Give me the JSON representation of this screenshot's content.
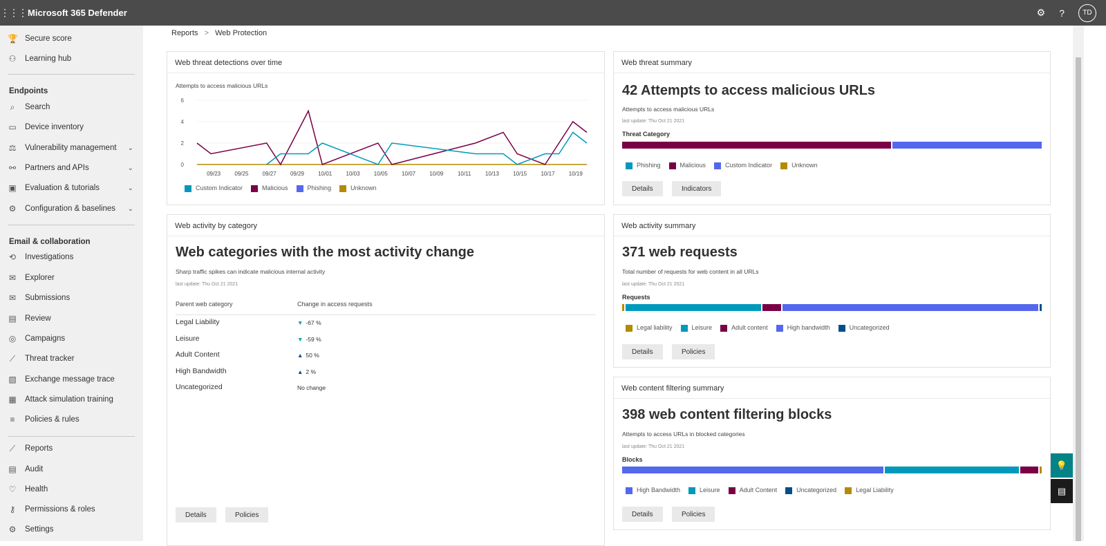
{
  "app": {
    "title": "Microsoft 365 Defender",
    "initials": "TD"
  },
  "sidebar": {
    "items": [
      {
        "label": "Secure score",
        "icon": "trophy-icon",
        "glyph": "🏆"
      },
      {
        "label": "Learning hub",
        "icon": "learning-icon",
        "glyph": "⚇"
      },
      {
        "header": "Endpoints"
      },
      {
        "label": "Search",
        "icon": "search-icon",
        "glyph": "⌕"
      },
      {
        "label": "Device inventory",
        "icon": "device-icon",
        "glyph": "▭"
      },
      {
        "label": "Vulnerability management",
        "icon": "vulnerability-icon",
        "glyph": "⚖",
        "chevron": true
      },
      {
        "label": "Partners and APIs",
        "icon": "partners-icon",
        "glyph": "⚯",
        "chevron": true
      },
      {
        "label": "Evaluation & tutorials",
        "icon": "evaluation-icon",
        "glyph": "▣",
        "chevron": true
      },
      {
        "label": "Configuration & baselines",
        "icon": "configuration-icon",
        "glyph": "⚙",
        "chevron": true
      },
      {
        "header": "Email & collaboration"
      },
      {
        "label": "Investigations",
        "icon": "investigations-icon",
        "glyph": "⟲"
      },
      {
        "label": "Explorer",
        "icon": "explorer-icon",
        "glyph": "✉"
      },
      {
        "label": "Submissions",
        "icon": "submissions-icon",
        "glyph": "✉"
      },
      {
        "label": "Review",
        "icon": "review-icon",
        "glyph": "▤"
      },
      {
        "label": "Campaigns",
        "icon": "campaigns-icon",
        "glyph": "◎"
      },
      {
        "label": "Threat tracker",
        "icon": "threat-tracker-icon",
        "glyph": "⟋"
      },
      {
        "label": "Exchange message trace",
        "icon": "exchange-icon",
        "glyph": "▧"
      },
      {
        "label": "Attack simulation training",
        "icon": "attack-simulation-icon",
        "glyph": "▦"
      },
      {
        "label": "Policies & rules",
        "icon": "policies-icon",
        "glyph": "≡"
      },
      {
        "label": "Reports",
        "icon": "reports-icon",
        "glyph": "⟋"
      },
      {
        "label": "Audit",
        "icon": "audit-icon",
        "glyph": "▤"
      },
      {
        "label": "Health",
        "icon": "health-icon",
        "glyph": "♡"
      },
      {
        "label": "Permissions & roles",
        "icon": "key-icon",
        "glyph": "⚷"
      },
      {
        "label": "Settings",
        "icon": "settings-icon",
        "glyph": "⚙"
      }
    ]
  },
  "breadcrumb": {
    "parent": "Reports",
    "sep": ">",
    "current": "Web Protection"
  },
  "colors": {
    "custom_indicator": "#0099bc",
    "malicious": "#7a0046",
    "phishing": "#5468ee",
    "unknown": "#b38b00",
    "uncategorized": "#004e8c",
    "leisure": "#0099bc",
    "legal": "#b38b00"
  },
  "detections": {
    "title": "Web threat detections over time",
    "chart_data": {
      "type": "line",
      "title": "Attempts to access malicious URLs",
      "ylim": [
        0,
        6
      ],
      "yticks": [
        0,
        2,
        4,
        6
      ],
      "x": [
        "09/22",
        "09/23",
        "09/24",
        "09/25",
        "09/26",
        "09/27",
        "09/28",
        "09/29",
        "09/30",
        "10/01",
        "10/02",
        "10/03",
        "10/04",
        "10/05",
        "10/06",
        "10/07",
        "10/08",
        "10/09",
        "10/10",
        "10/11",
        "10/12",
        "10/13",
        "10/14",
        "10/15",
        "10/16",
        "10/17",
        "10/18",
        "10/19",
        "10/20"
      ],
      "xticks": [
        "09/23",
        "09/25",
        "09/27",
        "09/29",
        "10/01",
        "10/03",
        "10/05",
        "10/07",
        "10/09",
        "10/11",
        "10/13",
        "10/15",
        "10/17",
        "10/19"
      ],
      "series": [
        {
          "name": "Custom Indicator",
          "color": "#0099bc",
          "points": [
            [
              "09/27",
              0
            ],
            [
              "09/28",
              1
            ],
            [
              "09/30",
              1
            ],
            [
              "10/01",
              2
            ],
            [
              "10/05",
              0
            ],
            [
              "10/06",
              2
            ],
            [
              "10/12",
              1
            ],
            [
              "10/14",
              1
            ],
            [
              "10/15",
              0
            ],
            [
              "10/17",
              1
            ],
            [
              "10/18",
              1
            ],
            [
              "10/19",
              3
            ],
            [
              "10/20",
              2
            ]
          ]
        },
        {
          "name": "Malicious",
          "color": "#7a0046",
          "points": [
            [
              "09/22",
              2
            ],
            [
              "09/23",
              1
            ],
            [
              "09/27",
              2
            ],
            [
              "09/28",
              0
            ],
            [
              "09/30",
              5
            ],
            [
              "10/01",
              0
            ],
            [
              "10/05",
              2
            ],
            [
              "10/06",
              0
            ],
            [
              "10/12",
              2
            ],
            [
              "10/14",
              3
            ],
            [
              "10/15",
              1
            ],
            [
              "10/17",
              0
            ],
            [
              "10/19",
              4
            ],
            [
              "10/20",
              3
            ]
          ]
        },
        {
          "name": "Phishing",
          "color": "#5468ee",
          "points": []
        },
        {
          "name": "Unknown",
          "color": "#b38b00",
          "points": [
            [
              "09/22",
              0
            ],
            [
              "10/20",
              0
            ]
          ]
        }
      ]
    }
  },
  "threat_summary": {
    "title": "Web threat summary",
    "headline": "42 Attempts to access malicious URLs",
    "sub": "Attempts to access malicious URLs",
    "updated": "last update: Thu Oct 21 2021",
    "bar_label": "Threat Category",
    "segments": [
      {
        "name": "Malicious",
        "value": 27,
        "color": "#7a0046"
      },
      {
        "name": "Custom Indicator",
        "value": 15,
        "color": "#5468ee"
      }
    ],
    "legend": [
      {
        "name": "Phishing",
        "color": "#0099bc"
      },
      {
        "name": "Malicious",
        "color": "#7a0046"
      },
      {
        "name": "Custom Indicator",
        "color": "#5468ee"
      },
      {
        "name": "Unknown",
        "color": "#b38b00"
      }
    ],
    "buttons": [
      "Details",
      "Indicators"
    ]
  },
  "activity_category": {
    "title": "Web activity by category",
    "headline": "Web categories with the most activity change",
    "sub": "Sharp traffic spikes can indicate malicious internal activity",
    "updated": "last update: Thu Oct 21 2021",
    "col1": "Parent web category",
    "col2": "Change in access requests",
    "rows": [
      {
        "name": "Legal Liability",
        "change": "-67 %",
        "dir": "down"
      },
      {
        "name": "Leisure",
        "change": "-59 %",
        "dir": "down"
      },
      {
        "name": "Adult Content",
        "change": "50 %",
        "dir": "up"
      },
      {
        "name": "High Bandwidth",
        "change": "2 %",
        "dir": "up"
      },
      {
        "name": "Uncategorized",
        "change": "No change",
        "dir": "none"
      }
    ],
    "buttons": [
      "Details",
      "Policies"
    ]
  },
  "activity_summary": {
    "title": "Web activity summary",
    "headline": "371 web requests",
    "sub": "Total number of requests for web content in all URLs",
    "updated": "last update: Thu Oct 21 2021",
    "bar_label": "Requests",
    "segments": [
      {
        "name": "Legal liability",
        "value": 2,
        "color": "#b38b00"
      },
      {
        "name": "Leisure",
        "value": 121,
        "color": "#0099bc"
      },
      {
        "name": "Adult content",
        "value": 17,
        "color": "#7a0046"
      },
      {
        "name": "High bandwidth",
        "value": 229,
        "color": "#5468ee"
      },
      {
        "name": "Uncategorized",
        "value": 2,
        "color": "#004e8c"
      }
    ],
    "buttons": [
      "Details",
      "Policies"
    ]
  },
  "filtering_summary": {
    "title": "Web content filtering summary",
    "headline": "398 web content filtering blocks",
    "sub": "Attempts to access URLs in blocked categories",
    "updated": "last update: Thu Oct 21 2021",
    "bar_label": "Blocks",
    "segments": [
      {
        "name": "High Bandwidth",
        "value": 250,
        "color": "#5468ee"
      },
      {
        "name": "Leisure",
        "value": 129,
        "color": "#0099bc"
      },
      {
        "name": "Adult Content",
        "value": 17,
        "color": "#7a0046"
      },
      {
        "name": "Uncategorized",
        "value": 0,
        "color": "#004e8c"
      },
      {
        "name": "Legal Liability",
        "value": 2,
        "color": "#b38b00"
      }
    ],
    "buttons": [
      "Details",
      "Policies"
    ]
  }
}
